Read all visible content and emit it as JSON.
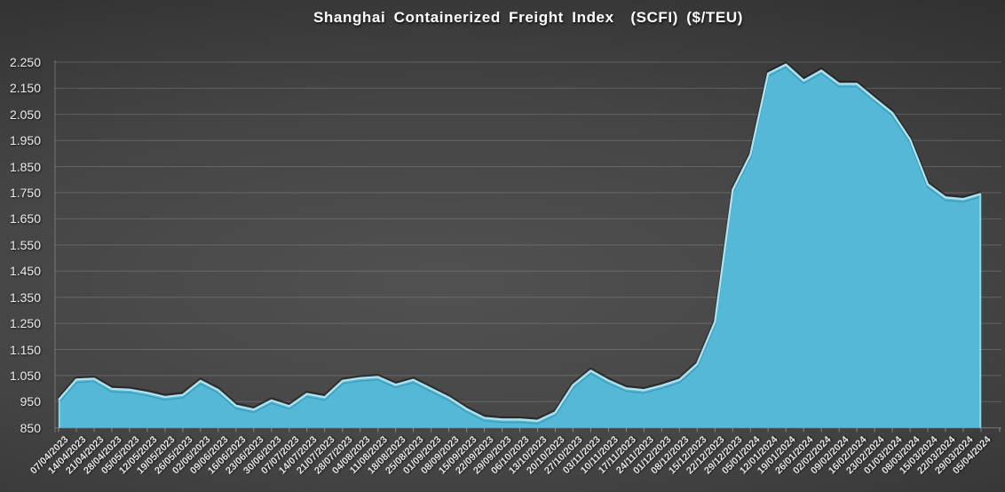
{
  "chart_data": {
    "type": "area",
    "title": "Shanghai Containerized Freight Index  (SCFI) ($/TEU)",
    "xlabel": "",
    "ylabel": "",
    "ylim": [
      850,
      2250
    ],
    "grid": true,
    "legend": false,
    "x_tick_rotation": -45,
    "y_ticks": [
      850,
      950,
      1050,
      1150,
      1250,
      1350,
      1450,
      1550,
      1650,
      1750,
      1850,
      1950,
      2050,
      2150,
      2250
    ],
    "y_tick_labels": [
      "850",
      "950",
      "1.050",
      "1.150",
      "1.250",
      "1.350",
      "1.450",
      "1.550",
      "1.650",
      "1.750",
      "1.850",
      "1.950",
      "2.050",
      "2.150",
      "2.250"
    ],
    "categories": [
      "07/04/2023",
      "14/04/2023",
      "21/04/2023",
      "28/04/2023",
      "05/05/2023",
      "12/05/2023",
      "19/05/2023",
      "26/05/2023",
      "02/06/2023",
      "09/06/2023",
      "16/06/2023",
      "23/06/2023",
      "30/06/2023",
      "07/07/2023",
      "14/07/2023",
      "21/07/2023",
      "28/07/2023",
      "04/08/2023",
      "11/08/2023",
      "18/08/2023",
      "25/08/2023",
      "01/09/2023",
      "08/09/2023",
      "15/09/2023",
      "22/09/2023",
      "29/09/2023",
      "06/10/2023",
      "13/10/2023",
      "20/10/2023",
      "27/10/2023",
      "03/11/2023",
      "10/11/2023",
      "17/11/2023",
      "24/11/2023",
      "01/12/2023",
      "08/12/2023",
      "15/12/2023",
      "22/12/2023",
      "29/12/2023",
      "05/01/2024",
      "12/01/2024",
      "19/01/2024",
      "26/01/2024",
      "02/02/2024",
      "09/02/2024",
      "16/02/2024",
      "23/02/2024",
      "01/03/2024",
      "08/03/2024",
      "15/03/2024",
      "22/03/2024",
      "29/03/2024",
      "05/04/2024"
    ],
    "values": [
      956,
      1034,
      1037,
      998,
      995,
      983,
      967,
      975,
      1029,
      994,
      934,
      919,
      954,
      932,
      979,
      966,
      1029,
      1039,
      1044,
      1014,
      1033,
      999,
      965,
      921,
      887,
      881,
      881,
      876,
      908,
      1013,
      1068,
      1030,
      1000,
      993,
      1011,
      1033,
      1094,
      1255,
      1760,
      1896,
      2206,
      2240,
      2179,
      2217,
      2166,
      2166,
      2110,
      2055,
      1953,
      1781,
      1731,
      1725,
      1745
    ],
    "colors": {
      "area_fill": "#54B8D6",
      "area_highlight": "#B7EAF5",
      "area_side_face": "#8EDCEC",
      "gridline": "#BEBEBE",
      "axis_text": "#EDEDED",
      "title_text": "#FFFFFF",
      "background_center": "#515151",
      "background_edge": "#222222"
    }
  }
}
